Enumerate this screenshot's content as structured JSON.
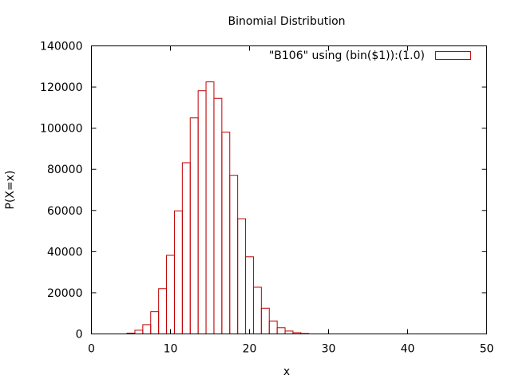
{
  "chart_data": {
    "type": "bar",
    "title": "Binomial Distribution",
    "xlabel": "x",
    "ylabel": "P(X=x)",
    "xlim": [
      0,
      50
    ],
    "ylim": [
      0,
      140000
    ],
    "xticks": [
      0,
      10,
      20,
      30,
      40,
      50
    ],
    "yticks": [
      0,
      20000,
      40000,
      60000,
      80000,
      100000,
      120000,
      140000
    ],
    "grid": false,
    "legend_position": "top-right",
    "bar_color": "#c00000",
    "bin_width": 1,
    "series": [
      {
        "name": "\"B106\" using (bin($1)):(1.0)",
        "x": [
          5,
          6,
          7,
          8,
          9,
          10,
          11,
          12,
          13,
          14,
          15,
          16,
          17,
          18,
          19,
          20,
          21,
          22,
          23,
          24,
          25,
          26,
          27
        ],
        "values": [
          400,
          1800,
          4500,
          10800,
          22000,
          38200,
          59800,
          83200,
          105000,
          118200,
          122500,
          114500,
          98100,
          77100,
          56000,
          37500,
          22700,
          12500,
          6300,
          3000,
          1400,
          600,
          200
        ]
      }
    ]
  }
}
